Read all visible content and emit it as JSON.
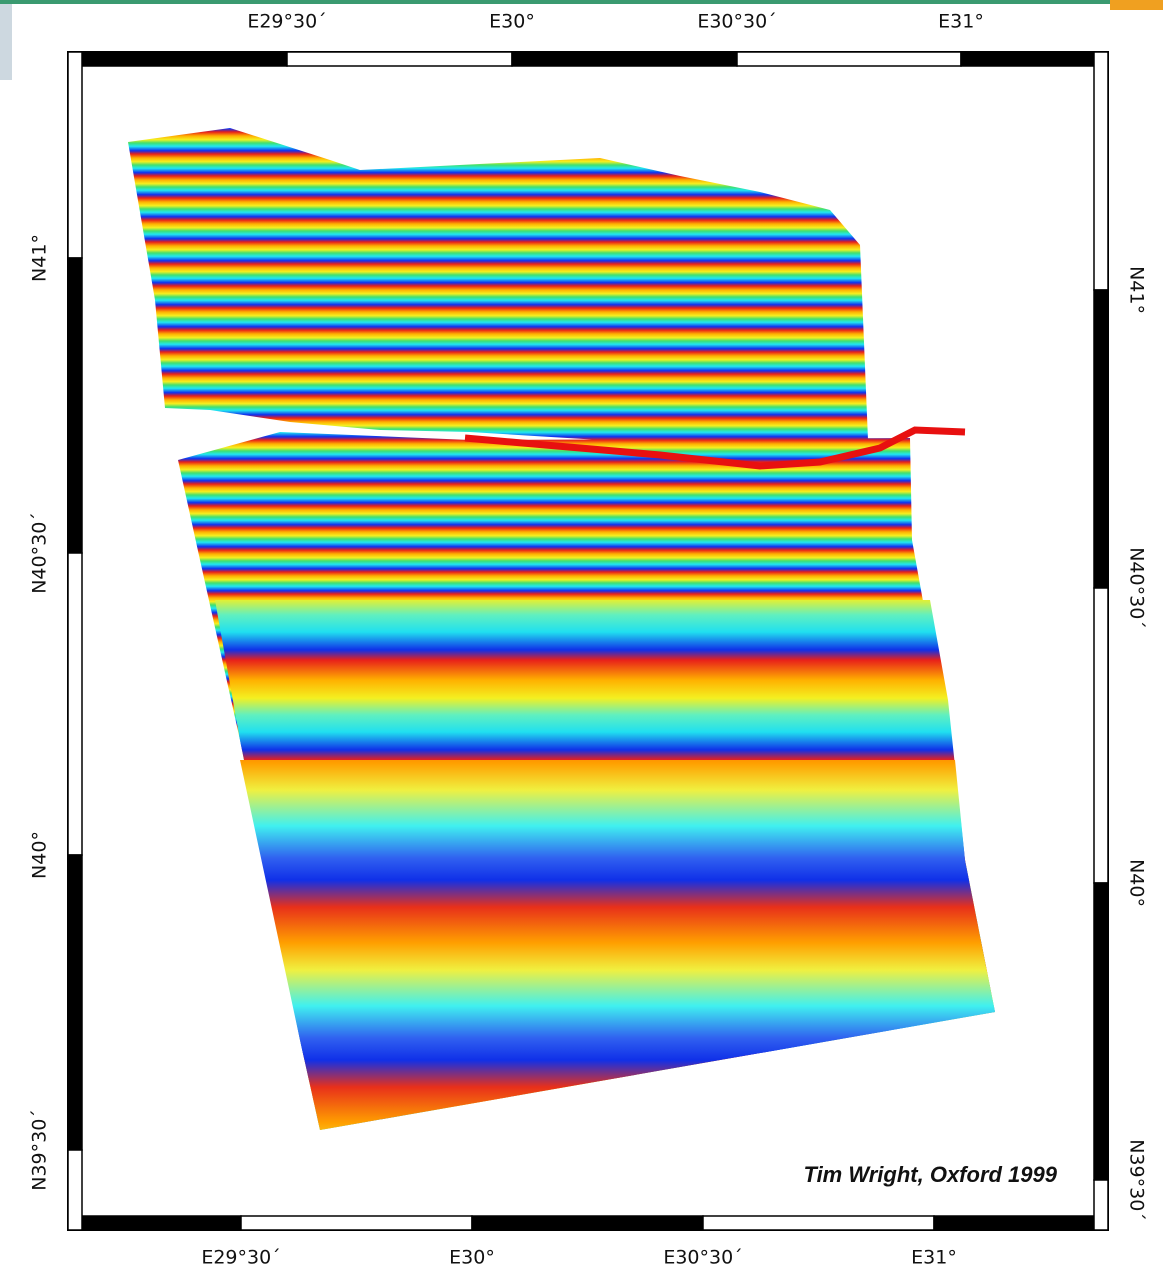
{
  "top_labels": [
    "E29°30´",
    "E30°",
    "E30°30´",
    "E31°"
  ],
  "bottom_labels": [
    "E29°30´",
    "E30°",
    "E30°30´",
    "E31°"
  ],
  "left_labels": [
    "N41°",
    "N40°30´",
    "N40°",
    "N39°30´"
  ],
  "right_labels": [
    "N41°",
    "N40°30´",
    "N40°",
    "N39°30´"
  ],
  "credit": "Tim Wright, Oxford 1999"
}
